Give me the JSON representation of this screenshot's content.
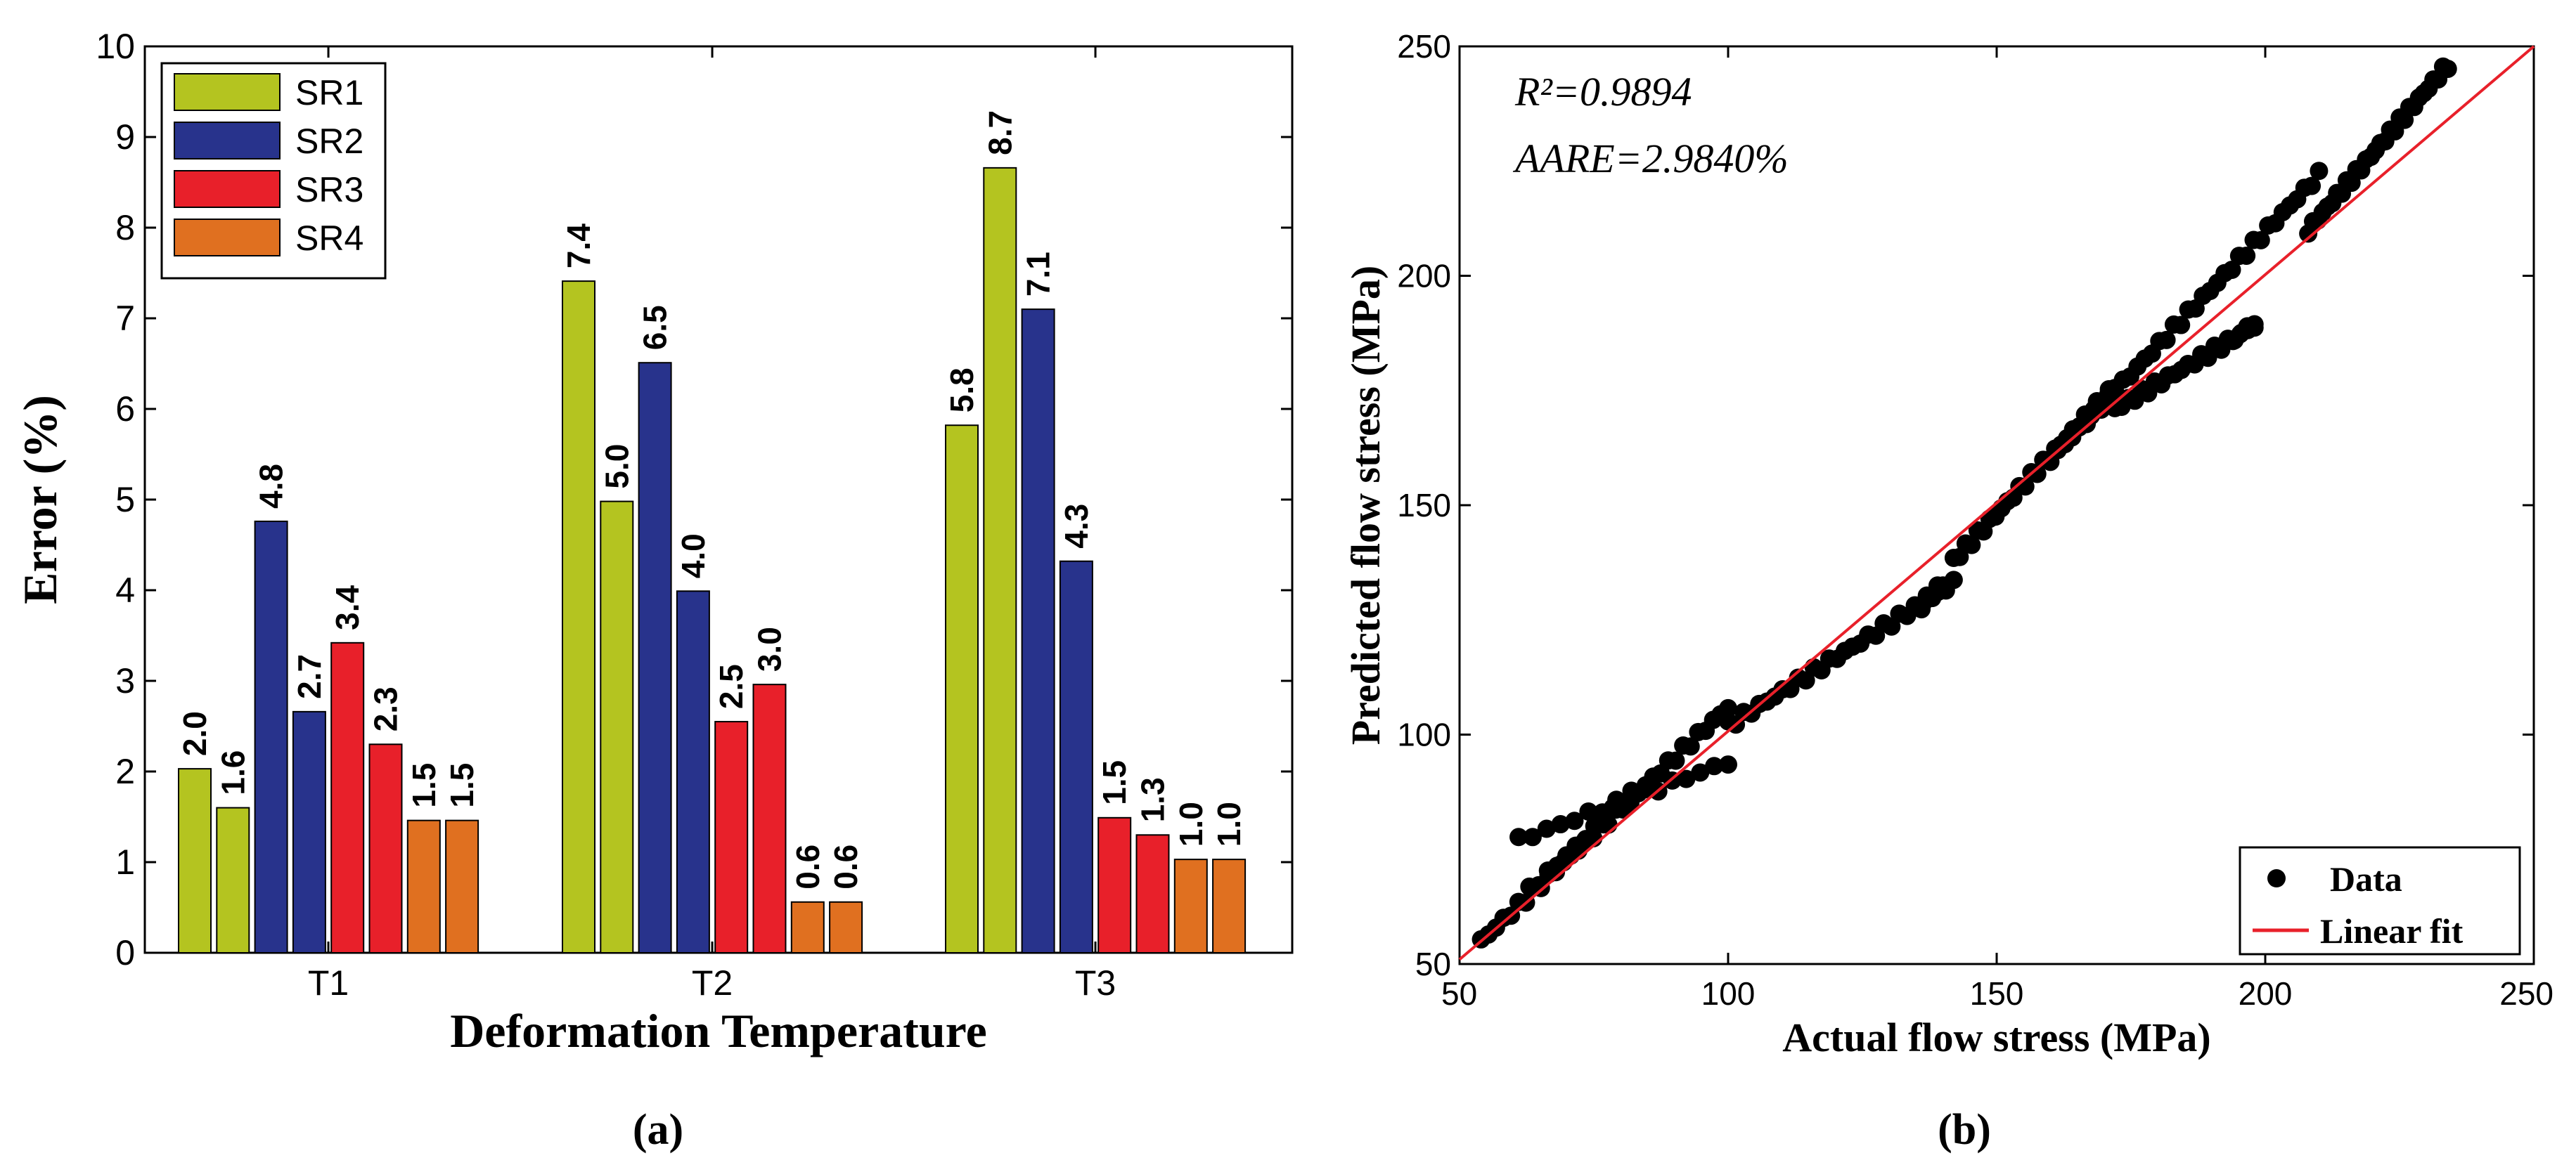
{
  "chart_data": [
    {
      "type": "bar",
      "panel_label": "(a)",
      "xlabel": "Deformation Temperature",
      "ylabel": "Error (%)",
      "ylim": [
        0,
        10
      ],
      "yticks": [
        "0",
        "1",
        "2",
        "3",
        "4",
        "5",
        "6",
        "7",
        "8",
        "9",
        "10"
      ],
      "categories": [
        "T1",
        "T2",
        "T3"
      ],
      "legend_position": "top-left",
      "bars": [
        {
          "category": "T1",
          "series": "SR1",
          "value": 2.03,
          "label": "2.0"
        },
        {
          "category": "T1",
          "series": "SR1",
          "value": 1.6,
          "label": "1.6"
        },
        {
          "category": "T1",
          "series": "SR2",
          "value": 4.76,
          "label": "4.8"
        },
        {
          "category": "T1",
          "series": "SR2",
          "value": 2.66,
          "label": "2.7"
        },
        {
          "category": "T1",
          "series": "SR3",
          "value": 3.42,
          "label": "3.4"
        },
        {
          "category": "T1",
          "series": "SR3",
          "value": 2.3,
          "label": "2.3"
        },
        {
          "category": "T1",
          "series": "SR4",
          "value": 1.46,
          "label": "1.5"
        },
        {
          "category": "T1",
          "series": "SR4",
          "value": 1.46,
          "label": "1.5"
        },
        {
          "category": "T2",
          "series": "SR1",
          "value": 7.41,
          "label": "7.4"
        },
        {
          "category": "T2",
          "series": "SR1",
          "value": 4.98,
          "label": "5.0"
        },
        {
          "category": "T2",
          "series": "SR2",
          "value": 6.51,
          "label": "6.5"
        },
        {
          "category": "T2",
          "series": "SR2",
          "value": 3.99,
          "label": "4.0"
        },
        {
          "category": "T2",
          "series": "SR3",
          "value": 2.55,
          "label": "2.5"
        },
        {
          "category": "T2",
          "series": "SR3",
          "value": 2.96,
          "label": "3.0"
        },
        {
          "category": "T2",
          "series": "SR4",
          "value": 0.56,
          "label": "0.6"
        },
        {
          "category": "T2",
          "series": "SR4",
          "value": 0.56,
          "label": "0.6"
        },
        {
          "category": "T3",
          "series": "SR1",
          "value": 5.82,
          "label": "5.8"
        },
        {
          "category": "T3",
          "series": "SR1",
          "value": 8.66,
          "label": "8.7"
        },
        {
          "category": "T3",
          "series": "SR2",
          "value": 7.1,
          "label": "7.1"
        },
        {
          "category": "T3",
          "series": "SR2",
          "value": 4.32,
          "label": "4.3"
        },
        {
          "category": "T3",
          "series": "SR3",
          "value": 1.49,
          "label": "1.5"
        },
        {
          "category": "T3",
          "series": "SR3",
          "value": 1.3,
          "label": "1.3"
        },
        {
          "category": "T3",
          "series": "SR4",
          "value": 1.03,
          "label": "1.0"
        },
        {
          "category": "T3",
          "series": "SR4",
          "value": 1.03,
          "label": "1.0"
        }
      ],
      "series": [
        {
          "name": "SR1",
          "color": "#b4c420"
        },
        {
          "name": "SR2",
          "color": "#28338c"
        },
        {
          "name": "SR3",
          "color": "#e8202a"
        },
        {
          "name": "SR4",
          "color": "#e07020"
        }
      ]
    },
    {
      "type": "scatter",
      "panel_label": "(b)",
      "xlabel": "Actual flow stress (MPa)",
      "ylabel": "Predicted flow stress (MPa)",
      "xlim": [
        50,
        250
      ],
      "ylim": [
        50,
        250
      ],
      "xticks": [
        "50",
        "100",
        "150",
        "200",
        "250"
      ],
      "yticks": [
        "50",
        "100",
        "150",
        "200",
        "250"
      ],
      "annotations": {
        "r2": "R²=0.9894",
        "aare": "AARE=2.9840%"
      },
      "legend_position": "bottom-right",
      "legend": [
        {
          "name": "Data",
          "marker": "dot",
          "color": "#000000"
        },
        {
          "name": "Linear fit",
          "marker": "line",
          "color": "#e8202a"
        }
      ],
      "fit_line": {
        "x": [
          50,
          250
        ],
        "y": [
          51,
          250
        ]
      },
      "series": [
        {
          "name": "Data",
          "color": "#000000",
          "segments": [
            {
              "x_range": [
                54,
                100
              ],
              "y_range": [
                55,
                106
              ],
              "n": 34
            },
            {
              "x_range": [
                61,
                100
              ],
              "y_range": [
                77,
                94
              ],
              "n": 16
            },
            {
              "x_range": [
                63,
                82
              ],
              "y_range": [
                66,
                87
              ],
              "n": 12
            },
            {
              "x_range": [
                100,
                142
              ],
              "y_range": [
                102,
                133
              ],
              "n": 30
            },
            {
              "x_range": [
                135,
                140
              ],
              "y_range": [
                127,
                133
              ],
              "n": 6
            },
            {
              "x_range": [
                142,
                172
              ],
              "y_range": [
                138,
                176
              ],
              "n": 28
            },
            {
              "x_range": [
                172,
                198
              ],
              "y_range": [
                171,
                189
              ],
              "n": 22
            },
            {
              "x_range": [
                194,
                198
              ],
              "y_range": [
                186,
                190
              ],
              "n": 4
            },
            {
              "x_range": [
                160,
                210
              ],
              "y_range": [
                160,
                222
              ],
              "n": 38
            },
            {
              "x_range": [
                208,
                234
              ],
              "y_range": [
                210,
                246
              ],
              "n": 30
            }
          ]
        }
      ]
    }
  ]
}
